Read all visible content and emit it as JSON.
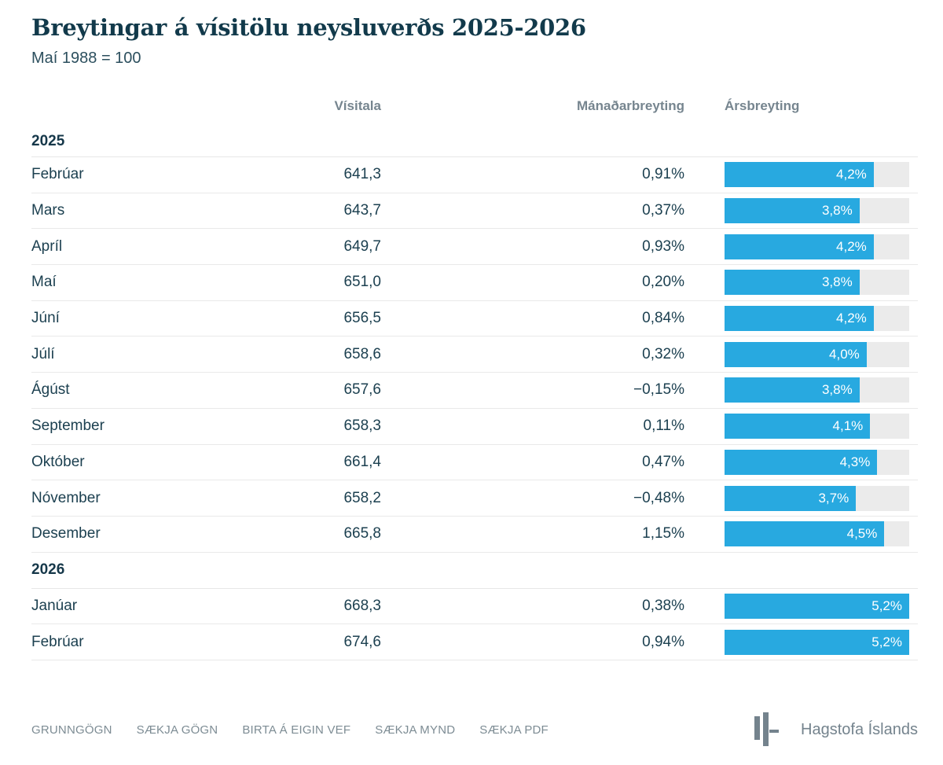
{
  "header": {
    "title": "Breytingar á vísitölu neysluverðs 2025-2026",
    "subtitle": "Maí 1988 = 100"
  },
  "chart_data": {
    "type": "table",
    "title": "Breytingar á vísitölu neysluverðs 2025-2026",
    "subtitle": "Maí 1988 = 100",
    "columns": [
      "Vísitala",
      "Mánaðarbreyting",
      "Ársbreyting"
    ],
    "bar_column": "Ársbreyting",
    "bar_range": [
      0,
      5.2
    ],
    "sections": [
      {
        "year": "2025",
        "rows": [
          {
            "month": "Febrúar",
            "visitala": "641,3",
            "manadarbreyting": "0,91%",
            "arsbreyting": "4,2%",
            "arsbreyting_value": 4.2
          },
          {
            "month": "Mars",
            "visitala": "643,7",
            "manadarbreyting": "0,37%",
            "arsbreyting": "3,8%",
            "arsbreyting_value": 3.8
          },
          {
            "month": "Apríl",
            "visitala": "649,7",
            "manadarbreyting": "0,93%",
            "arsbreyting": "4,2%",
            "arsbreyting_value": 4.2
          },
          {
            "month": "Maí",
            "visitala": "651,0",
            "manadarbreyting": "0,20%",
            "arsbreyting": "3,8%",
            "arsbreyting_value": 3.8
          },
          {
            "month": "Júní",
            "visitala": "656,5",
            "manadarbreyting": "0,84%",
            "arsbreyting": "4,2%",
            "arsbreyting_value": 4.2
          },
          {
            "month": "Júlí",
            "visitala": "658,6",
            "manadarbreyting": "0,32%",
            "arsbreyting": "4,0%",
            "arsbreyting_value": 4.0
          },
          {
            "month": "Ágúst",
            "visitala": "657,6",
            "manadarbreyting": "−0,15%",
            "arsbreyting": "3,8%",
            "arsbreyting_value": 3.8
          },
          {
            "month": "September",
            "visitala": "658,3",
            "manadarbreyting": "0,11%",
            "arsbreyting": "4,1%",
            "arsbreyting_value": 4.1
          },
          {
            "month": "Október",
            "visitala": "661,4",
            "manadarbreyting": "0,47%",
            "arsbreyting": "4,3%",
            "arsbreyting_value": 4.3
          },
          {
            "month": "Nóvember",
            "visitala": "658,2",
            "manadarbreyting": "−0,48%",
            "arsbreyting": "3,7%",
            "arsbreyting_value": 3.7
          },
          {
            "month": "Desember",
            "visitala": "665,8",
            "manadarbreyting": "1,15%",
            "arsbreyting": "4,5%",
            "arsbreyting_value": 4.5
          }
        ]
      },
      {
        "year": "2026",
        "rows": [
          {
            "month": "Janúar",
            "visitala": "668,3",
            "manadarbreyting": "0,38%",
            "arsbreyting": "5,2%",
            "arsbreyting_value": 5.2
          },
          {
            "month": "Febrúar",
            "visitala": "674,6",
            "manadarbreyting": "0,94%",
            "arsbreyting": "5,2%",
            "arsbreyting_value": 5.2
          }
        ]
      }
    ]
  },
  "footer": {
    "links": [
      "GRUNNGÖGN",
      "SÆKJA GÖGN",
      "BIRTA Á EIGIN VEF",
      "SÆKJA MYND",
      "SÆKJA PDF"
    ],
    "logo_text": "Hagstofa Íslands"
  },
  "colors": {
    "accent_bar": "#28a9e0",
    "bar_track": "#ebebeb",
    "text_dark": "#16384a",
    "text_gray": "#76858f",
    "divider": "#e9e9e9"
  }
}
